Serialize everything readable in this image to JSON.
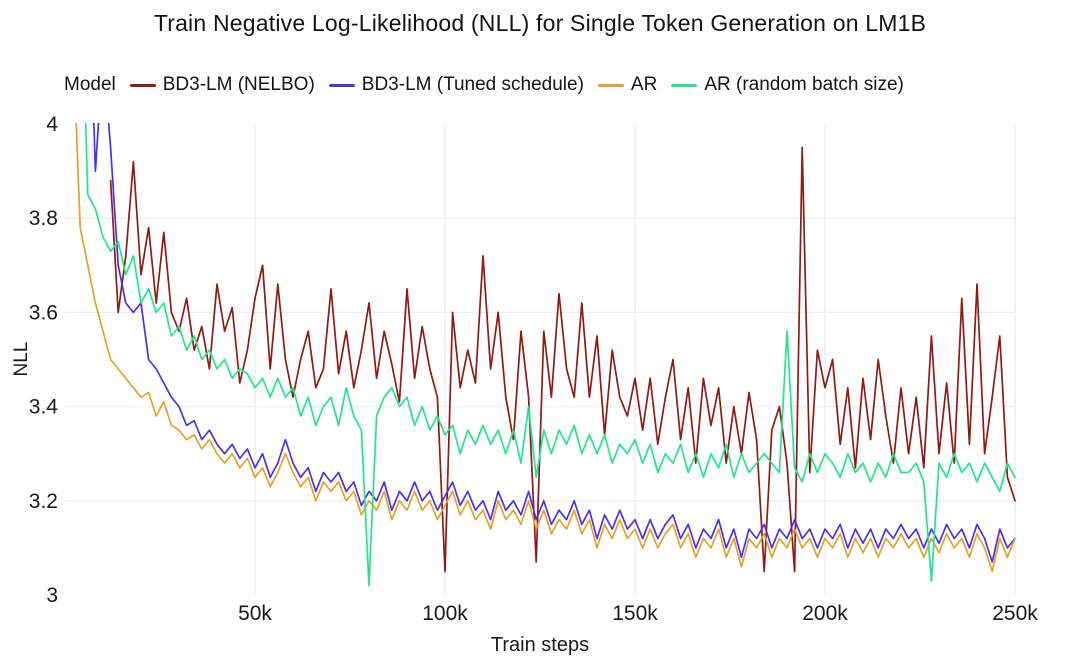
{
  "legend": {
    "title": "Model"
  },
  "chart_data": {
    "type": "line",
    "title": "Train Negative Log-Likelihood (NLL) for Single Token Generation on LM1B",
    "xlabel": "Train steps",
    "ylabel": "NLL",
    "xlim_steps": [
      0,
      250000
    ],
    "ylim": [
      3,
      4
    ],
    "x_units": "train steps (thousands)",
    "grid": {
      "horizontal_at": [
        3.2,
        3.4,
        3.6,
        3.8
      ],
      "vertical_at": [
        50,
        100,
        150,
        200,
        250
      ],
      "h_color": "#e9eff7",
      "v_color": "#ebebeb"
    },
    "legend_position": "top",
    "xticks": {
      "values": [
        50,
        100,
        150,
        200,
        250
      ],
      "labels": [
        "50k",
        "100k",
        "150k",
        "200k",
        "250k"
      ]
    },
    "yticks": {
      "values": [
        3,
        3.2,
        3.4,
        3.6,
        3.8,
        4
      ],
      "labels": [
        "3",
        "3.2",
        "3.4",
        "3.6",
        "3.8",
        "4"
      ]
    },
    "x": [
      2,
      4,
      6,
      8,
      10,
      12,
      14,
      16,
      18,
      20,
      22,
      24,
      26,
      28,
      30,
      32,
      34,
      36,
      38,
      40,
      42,
      44,
      46,
      48,
      50,
      52,
      54,
      56,
      58,
      60,
      62,
      64,
      66,
      68,
      70,
      72,
      74,
      76,
      78,
      80,
      82,
      84,
      86,
      88,
      90,
      92,
      94,
      96,
      98,
      100,
      102,
      104,
      106,
      108,
      110,
      112,
      114,
      116,
      118,
      120,
      122,
      124,
      126,
      128,
      130,
      132,
      134,
      136,
      138,
      140,
      142,
      144,
      146,
      148,
      150,
      152,
      154,
      156,
      158,
      160,
      162,
      164,
      166,
      168,
      170,
      172,
      174,
      176,
      178,
      180,
      182,
      184,
      186,
      188,
      190,
      192,
      194,
      196,
      198,
      200,
      202,
      204,
      206,
      208,
      210,
      212,
      214,
      216,
      218,
      220,
      222,
      224,
      226,
      228,
      230,
      232,
      234,
      236,
      238,
      240,
      242,
      244,
      246,
      248,
      250
    ],
    "series": [
      {
        "name": "BD3-LM (NELBO)",
        "color": "#8e1b14",
        "values": [
          null,
          null,
          null,
          null,
          null,
          3.88,
          3.6,
          3.72,
          3.92,
          3.68,
          3.78,
          3.62,
          3.77,
          3.6,
          3.56,
          3.63,
          3.52,
          3.57,
          3.48,
          3.66,
          3.56,
          3.61,
          3.45,
          3.52,
          3.63,
          3.7,
          3.48,
          3.66,
          3.5,
          3.42,
          3.5,
          3.56,
          3.44,
          3.48,
          3.65,
          3.47,
          3.56,
          3.44,
          3.52,
          3.62,
          3.46,
          3.56,
          3.49,
          3.41,
          3.65,
          3.46,
          3.57,
          3.48,
          3.42,
          3.05,
          3.6,
          3.44,
          3.52,
          3.45,
          3.72,
          3.48,
          3.6,
          3.42,
          3.33,
          3.56,
          3.42,
          3.07,
          3.56,
          3.42,
          3.64,
          3.48,
          3.42,
          3.62,
          3.42,
          3.55,
          3.34,
          3.52,
          3.42,
          3.38,
          3.46,
          3.35,
          3.46,
          3.32,
          3.42,
          3.5,
          3.33,
          3.44,
          3.28,
          3.46,
          3.36,
          3.44,
          3.28,
          3.4,
          3.3,
          3.43,
          3.33,
          3.05,
          3.35,
          3.4,
          3.28,
          3.05,
          3.95,
          3.26,
          3.52,
          3.44,
          3.5,
          3.32,
          3.44,
          3.27,
          3.46,
          3.33,
          3.5,
          3.38,
          3.28,
          3.44,
          3.3,
          3.42,
          3.27,
          3.55,
          3.3,
          3.45,
          3.28,
          3.63,
          3.32,
          3.66,
          3.3,
          3.42,
          3.55,
          3.25,
          3.2
        ]
      },
      {
        "name": "BD3-LM (Tuned schedule)",
        "color": "#4c31e8",
        "values": [
          null,
          null,
          4.4,
          3.9,
          4.15,
          3.95,
          3.7,
          3.62,
          3.6,
          3.62,
          3.5,
          3.48,
          3.45,
          3.42,
          3.4,
          3.36,
          3.37,
          3.33,
          3.35,
          3.32,
          3.3,
          3.32,
          3.29,
          3.31,
          3.27,
          3.3,
          3.25,
          3.28,
          3.33,
          3.28,
          3.25,
          3.27,
          3.22,
          3.26,
          3.24,
          3.26,
          3.22,
          3.24,
          3.19,
          3.22,
          3.2,
          3.24,
          3.18,
          3.22,
          3.2,
          3.24,
          3.2,
          3.22,
          3.18,
          3.21,
          3.24,
          3.19,
          3.22,
          3.18,
          3.2,
          3.16,
          3.22,
          3.18,
          3.2,
          3.17,
          3.22,
          3.16,
          3.2,
          3.15,
          3.18,
          3.16,
          3.2,
          3.15,
          3.18,
          3.12,
          3.17,
          3.14,
          3.18,
          3.14,
          3.16,
          3.12,
          3.16,
          3.12,
          3.15,
          3.17,
          3.12,
          3.15,
          3.1,
          3.14,
          3.12,
          3.16,
          3.1,
          3.14,
          3.08,
          3.14,
          3.12,
          3.15,
          3.1,
          3.14,
          3.12,
          3.16,
          3.12,
          3.14,
          3.1,
          3.14,
          3.12,
          3.15,
          3.1,
          3.14,
          3.11,
          3.14,
          3.1,
          3.14,
          3.12,
          3.15,
          3.12,
          3.14,
          3.1,
          3.14,
          3.11,
          3.15,
          3.12,
          3.14,
          3.1,
          3.15,
          3.12,
          3.07,
          3.14,
          3.1,
          3.12
        ]
      },
      {
        "name": "AR",
        "color": "#e2a32b",
        "values": [
          4.2,
          3.78,
          3.7,
          3.62,
          3.56,
          3.5,
          3.48,
          3.46,
          3.44,
          3.42,
          3.43,
          3.38,
          3.41,
          3.36,
          3.35,
          3.33,
          3.34,
          3.31,
          3.33,
          3.3,
          3.28,
          3.3,
          3.27,
          3.29,
          3.25,
          3.27,
          3.23,
          3.26,
          3.3,
          3.26,
          3.23,
          3.25,
          3.2,
          3.24,
          3.22,
          3.24,
          3.2,
          3.22,
          3.17,
          3.2,
          3.18,
          3.22,
          3.16,
          3.2,
          3.18,
          3.22,
          3.18,
          3.2,
          3.16,
          3.19,
          3.22,
          3.17,
          3.2,
          3.16,
          3.18,
          3.14,
          3.2,
          3.16,
          3.18,
          3.15,
          3.2,
          3.14,
          3.18,
          3.13,
          3.16,
          3.14,
          3.18,
          3.13,
          3.16,
          3.1,
          3.15,
          3.12,
          3.16,
          3.12,
          3.14,
          3.1,
          3.14,
          3.1,
          3.13,
          3.15,
          3.1,
          3.13,
          3.08,
          3.12,
          3.1,
          3.14,
          3.08,
          3.12,
          3.06,
          3.12,
          3.1,
          3.13,
          3.08,
          3.12,
          3.1,
          3.14,
          3.1,
          3.12,
          3.08,
          3.12,
          3.1,
          3.13,
          3.08,
          3.12,
          3.09,
          3.12,
          3.08,
          3.12,
          3.1,
          3.13,
          3.1,
          3.12,
          3.08,
          3.12,
          3.09,
          3.13,
          3.1,
          3.12,
          3.08,
          3.13,
          3.1,
          3.05,
          3.12,
          3.08,
          3.12
        ]
      },
      {
        "name": "AR (random batch size)",
        "color": "#24e58d",
        "values": [
          null,
          4.4,
          3.85,
          3.82,
          3.76,
          3.73,
          3.75,
          3.68,
          3.72,
          3.62,
          3.65,
          3.6,
          3.62,
          3.55,
          3.57,
          3.52,
          3.55,
          3.5,
          3.52,
          3.48,
          3.5,
          3.46,
          3.48,
          3.47,
          3.44,
          3.46,
          3.42,
          3.46,
          3.42,
          3.44,
          3.38,
          3.42,
          3.36,
          3.4,
          3.42,
          3.36,
          3.44,
          3.38,
          3.35,
          3.02,
          3.38,
          3.42,
          3.44,
          3.4,
          3.42,
          3.36,
          3.4,
          3.35,
          3.38,
          3.34,
          3.36,
          3.3,
          3.35,
          3.32,
          3.36,
          3.32,
          3.35,
          3.3,
          3.35,
          3.28,
          3.4,
          3.25,
          3.35,
          3.3,
          3.35,
          3.32,
          3.36,
          3.3,
          3.34,
          3.3,
          3.34,
          3.28,
          3.32,
          3.3,
          3.33,
          3.28,
          3.32,
          3.26,
          3.3,
          3.28,
          3.32,
          3.26,
          3.3,
          3.25,
          3.3,
          3.27,
          3.32,
          3.25,
          3.3,
          3.26,
          3.28,
          3.3,
          3.28,
          3.26,
          3.56,
          3.27,
          3.24,
          3.3,
          3.26,
          3.3,
          3.28,
          3.25,
          3.3,
          3.26,
          3.28,
          3.24,
          3.28,
          3.25,
          3.3,
          3.26,
          3.26,
          3.28,
          3.24,
          3.03,
          3.28,
          3.25,
          3.3,
          3.26,
          3.28,
          3.24,
          3.28,
          3.25,
          3.22,
          3.28,
          3.25
        ]
      }
    ]
  }
}
